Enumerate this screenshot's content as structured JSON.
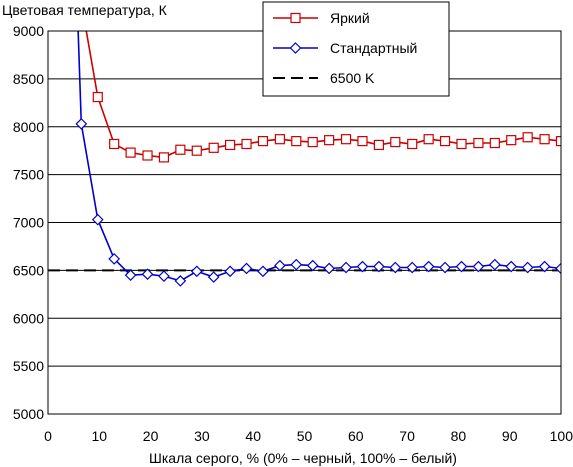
{
  "chart_data": {
    "type": "line",
    "title": "",
    "ylabel": "Цветовая температура, К",
    "xlabel": "Шкала серого, % (0% – черный, 100% – белый)",
    "xlim": [
      0,
      100
    ],
    "ylim": [
      5000,
      9000
    ],
    "xticks": [
      0,
      10,
      20,
      30,
      40,
      50,
      60,
      70,
      80,
      90,
      100
    ],
    "yticks": [
      5000,
      5500,
      6000,
      6500,
      7000,
      7500,
      8000,
      8500,
      9000
    ],
    "grid": "horizontal",
    "legend_position": "top-right",
    "series": [
      {
        "name": "Яркий",
        "color": "#cc0000",
        "marker": "square",
        "x": [
          6.5,
          9.7,
          12.9,
          16.1,
          19.4,
          22.6,
          25.8,
          29.0,
          32.3,
          35.5,
          38.7,
          41.9,
          45.2,
          48.4,
          51.6,
          54.8,
          58.1,
          61.3,
          64.5,
          67.7,
          71.0,
          74.2,
          77.4,
          80.6,
          83.9,
          87.1,
          90.3,
          93.5,
          96.8,
          100
        ],
        "y": [
          9300,
          8310,
          7820,
          7730,
          7700,
          7680,
          7760,
          7750,
          7780,
          7810,
          7820,
          7850,
          7870,
          7850,
          7840,
          7860,
          7870,
          7850,
          7810,
          7840,
          7820,
          7870,
          7850,
          7820,
          7830,
          7830,
          7860,
          7890,
          7870,
          7850
        ]
      },
      {
        "name": "Стандартный",
        "color": "#0000cc",
        "marker": "diamond",
        "x": [
          5.5,
          6.5,
          9.7,
          12.9,
          16.1,
          19.4,
          22.6,
          25.8,
          29.0,
          32.3,
          35.5,
          38.7,
          41.9,
          45.2,
          48.4,
          51.6,
          54.8,
          58.1,
          61.3,
          64.5,
          67.7,
          71.0,
          74.2,
          77.4,
          80.6,
          83.9,
          87.1,
          90.3,
          93.5,
          96.8,
          100
        ],
        "y": [
          9600,
          8030,
          7030,
          6620,
          6450,
          6460,
          6440,
          6390,
          6490,
          6430,
          6490,
          6520,
          6490,
          6550,
          6560,
          6550,
          6520,
          6530,
          6540,
          6540,
          6530,
          6530,
          6540,
          6530,
          6540,
          6540,
          6560,
          6540,
          6530,
          6540,
          6520
        ]
      },
      {
        "name": "6500 K",
        "color": "#000000",
        "marker": "none",
        "dashed": true,
        "x": [
          0,
          100
        ],
        "y": [
          6500,
          6500
        ]
      }
    ]
  }
}
